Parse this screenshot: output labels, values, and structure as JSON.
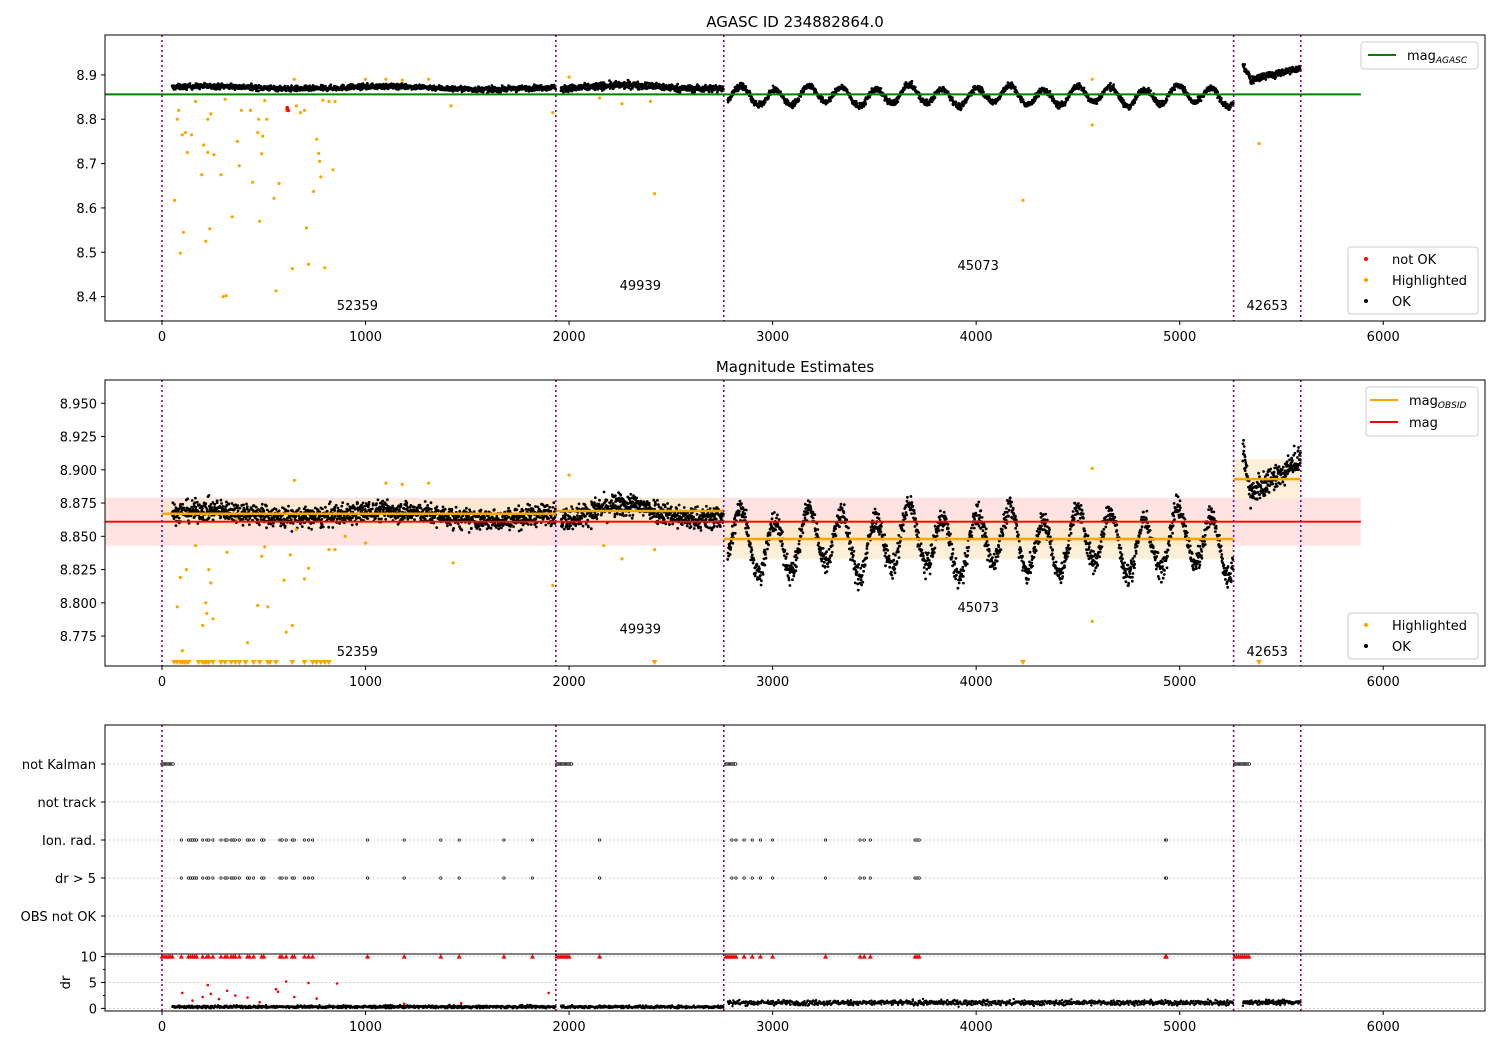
{
  "figure": {
    "top_title": "AGASC ID 234882864.0",
    "middle_title": "Magnitude Estimates"
  },
  "colors": {
    "ok": "#000000",
    "highlighted": "#ffa500",
    "not_ok": "#ff0000",
    "mag_agasc_line": "#008000",
    "mag_obsid_line": "#ffa500",
    "mag_line": "#ff0000",
    "mag_band": "#ffcccc",
    "obsid_band": "#fde9c8",
    "obsid_boundary": "#800080",
    "grid": "#b0b0b0"
  },
  "chart_data": [
    {
      "type": "scatter",
      "panel": "top",
      "title": "AGASC ID 234882864.0",
      "xlim": [
        -280,
        6500
      ],
      "ylim": [
        8.345,
        8.99
      ],
      "xticks": [
        0,
        1000,
        2000,
        3000,
        4000,
        5000,
        6000
      ],
      "xtick_labels": [
        "0",
        "1000",
        "2000",
        "3000",
        "4000",
        "5000",
        "6000"
      ],
      "yticks": [
        8.4,
        8.5,
        8.6,
        8.7,
        8.8,
        8.9
      ],
      "ytick_labels": [
        "8.4",
        "8.5",
        "8.6",
        "8.7",
        "8.8",
        "8.9"
      ],
      "legend_upper": {
        "position": "top-right",
        "entries": [
          {
            "label": "mag",
            "sub": "AGASC",
            "color": "#008000",
            "marker": "line"
          }
        ]
      },
      "legend_lower": {
        "position": "bottom-right",
        "entries": [
          {
            "label": "not OK",
            "color": "#ff0000",
            "marker": "dot"
          },
          {
            "label": "Highlighted",
            "color": "#ffa500",
            "marker": "dot"
          },
          {
            "label": "OK",
            "color": "#000000",
            "marker": "dot"
          }
        ]
      },
      "mag_agasc": 8.856,
      "mag_agasc_x": [
        -280,
        5890
      ],
      "obsid_boundaries": [
        0,
        1935,
        2760,
        5265,
        5595
      ],
      "obsid_labels": [
        {
          "text": "52359",
          "x": 960,
          "y": 8.37
        },
        {
          "text": "49939",
          "x": 2350,
          "y": 8.415
        },
        {
          "text": "45073",
          "x": 4010,
          "y": 8.46
        },
        {
          "text": "42653",
          "x": 5430,
          "y": 8.37
        }
      ],
      "ok_segments": [
        {
          "x0": 50,
          "x1": 1935,
          "center": 8.871,
          "amp": 0.003,
          "period": 900,
          "noise": 0.006,
          "n": 1400
        },
        {
          "x0": 1960,
          "x1": 2760,
          "center": 8.872,
          "amp": 0.004,
          "period": 700,
          "noise": 0.008,
          "n": 600
        },
        {
          "x0": 2780,
          "x1": 5265,
          "center": 8.853,
          "amp": 0.019,
          "period": 165,
          "noise": 0.007,
          "n": 1700
        },
        {
          "x0": 5310,
          "x1": 5595,
          "center": 8.897,
          "amp": 0.0,
          "period": 1000,
          "noise": 0.009,
          "n": 230
        }
      ],
      "not_ok_points": [
        [
          615,
          8.826
        ],
        [
          620,
          8.82
        ]
      ],
      "highlighted_points": [
        [
          62,
          8.617
        ],
        [
          75,
          8.8
        ],
        [
          82,
          8.82
        ],
        [
          90,
          8.498
        ],
        [
          100,
          8.765
        ],
        [
          105,
          8.545
        ],
        [
          115,
          8.77
        ],
        [
          125,
          8.725
        ],
        [
          145,
          8.765
        ],
        [
          165,
          8.84
        ],
        [
          195,
          8.675
        ],
        [
          205,
          8.742
        ],
        [
          215,
          8.525
        ],
        [
          225,
          8.8
        ],
        [
          225,
          8.725
        ],
        [
          235,
          8.553
        ],
        [
          240,
          8.812
        ],
        [
          255,
          8.72
        ],
        [
          290,
          8.675
        ],
        [
          300,
          8.4
        ],
        [
          310,
          8.845
        ],
        [
          315,
          8.402
        ],
        [
          345,
          8.58
        ],
        [
          370,
          8.75
        ],
        [
          380,
          8.695
        ],
        [
          390,
          8.82
        ],
        [
          435,
          8.82
        ],
        [
          445,
          8.658
        ],
        [
          470,
          8.77
        ],
        [
          475,
          8.8
        ],
        [
          480,
          8.57
        ],
        [
          490,
          8.722
        ],
        [
          495,
          8.762
        ],
        [
          505,
          8.842
        ],
        [
          515,
          8.8
        ],
        [
          550,
          8.622
        ],
        [
          560,
          8.413
        ],
        [
          575,
          8.655
        ],
        [
          610,
          8.82
        ],
        [
          640,
          8.463
        ],
        [
          660,
          8.83
        ],
        [
          680,
          8.815
        ],
        [
          700,
          8.82
        ],
        [
          710,
          8.555
        ],
        [
          720,
          8.473
        ],
        [
          745,
          8.637
        ],
        [
          760,
          8.755
        ],
        [
          770,
          8.723
        ],
        [
          775,
          8.705
        ],
        [
          780,
          8.67
        ],
        [
          790,
          8.843
        ],
        [
          800,
          8.465
        ],
        [
          820,
          8.84
        ],
        [
          840,
          8.686
        ],
        [
          850,
          8.84
        ],
        [
          1420,
          8.83
        ],
        [
          1920,
          8.815
        ],
        [
          2000,
          8.895
        ],
        [
          2150,
          8.848
        ],
        [
          2260,
          8.835
        ],
        [
          2400,
          8.84
        ],
        [
          2420,
          8.632
        ],
        [
          4230,
          8.617
        ],
        [
          4570,
          8.89
        ],
        [
          4570,
          8.787
        ],
        [
          5390,
          8.745
        ],
        [
          650,
          8.89
        ],
        [
          1000,
          8.89
        ],
        [
          1100,
          8.89
        ],
        [
          1180,
          8.888
        ],
        [
          1310,
          8.89
        ]
      ]
    },
    {
      "type": "scatter",
      "panel": "middle",
      "title": "Magnitude Estimates",
      "xlim": [
        -280,
        6500
      ],
      "ylim": [
        8.7525,
        8.9675
      ],
      "xticks": [
        0,
        1000,
        2000,
        3000,
        4000,
        5000,
        6000
      ],
      "xtick_labels": [
        "0",
        "1000",
        "2000",
        "3000",
        "4000",
        "5000",
        "6000"
      ],
      "yticks": [
        8.775,
        8.8,
        8.825,
        8.85,
        8.875,
        8.9,
        8.925,
        8.95
      ],
      "ytick_labels": [
        "8.775",
        "8.800",
        "8.825",
        "8.850",
        "8.875",
        "8.900",
        "8.925",
        "8.950"
      ],
      "legend_upper": {
        "position": "top-right",
        "entries": [
          {
            "label": "mag",
            "sub": "OBSID",
            "color": "#ffa500",
            "marker": "line"
          },
          {
            "label": "mag",
            "color": "#ff0000",
            "marker": "line"
          }
        ]
      },
      "legend_lower": {
        "position": "bottom-right",
        "entries": [
          {
            "label": "Highlighted",
            "color": "#ffa500",
            "marker": "dot"
          },
          {
            "label": "OK",
            "color": "#000000",
            "marker": "dot"
          }
        ]
      },
      "mag": 8.861,
      "mag_band": [
        8.843,
        8.879
      ],
      "mag_x": [
        -280,
        5890
      ],
      "mag_obsid": [
        {
          "x0": 0,
          "x1": 1935,
          "value": 8.867,
          "band": [
            8.857,
            8.877
          ]
        },
        {
          "x0": 1935,
          "x1": 2760,
          "value": 8.869,
          "band": [
            8.859,
            8.879
          ]
        },
        {
          "x0": 2760,
          "x1": 5265,
          "value": 8.848,
          "band": [
            8.833,
            8.863
          ]
        },
        {
          "x0": 5265,
          "x1": 5595,
          "value": 8.893,
          "band": [
            8.878,
            8.908
          ]
        }
      ],
      "obsid_boundaries": [
        0,
        1935,
        2760,
        5265,
        5595
      ],
      "obsid_labels": [
        {
          "text": "52359",
          "x": 960,
          "y": 8.76
        },
        {
          "text": "49939",
          "x": 2350,
          "y": 8.777
        },
        {
          "text": "45073",
          "x": 4010,
          "y": 8.793
        },
        {
          "text": "42653",
          "x": 5430,
          "y": 8.76
        }
      ],
      "ok_segments": [
        {
          "x0": 50,
          "x1": 1935,
          "center": 8.866,
          "amp": 0.003,
          "period": 900,
          "noise": 0.008,
          "n": 1400
        },
        {
          "x0": 1960,
          "x1": 2760,
          "center": 8.867,
          "amp": 0.005,
          "period": 700,
          "noise": 0.009,
          "n": 600
        },
        {
          "x0": 2780,
          "x1": 5265,
          "center": 8.846,
          "amp": 0.021,
          "period": 165,
          "noise": 0.009,
          "n": 1700
        },
        {
          "x0": 5310,
          "x1": 5595,
          "center": 8.89,
          "amp": 0.0,
          "period": 1000,
          "noise": 0.011,
          "n": 230
        }
      ],
      "highlighted_points": [
        [
          75,
          8.797
        ],
        [
          90,
          8.819
        ],
        [
          100,
          8.764
        ],
        [
          120,
          8.825
        ],
        [
          165,
          8.843
        ],
        [
          200,
          8.783
        ],
        [
          215,
          8.8
        ],
        [
          220,
          8.792
        ],
        [
          230,
          8.825
        ],
        [
          240,
          8.815
        ],
        [
          250,
          8.788
        ],
        [
          320,
          8.838
        ],
        [
          365,
          8.863
        ],
        [
          420,
          8.77
        ],
        [
          470,
          8.798
        ],
        [
          490,
          8.835
        ],
        [
          505,
          8.842
        ],
        [
          520,
          8.797
        ],
        [
          600,
          8.817
        ],
        [
          610,
          8.778
        ],
        [
          630,
          8.836
        ],
        [
          640,
          8.783
        ],
        [
          660,
          8.855
        ],
        [
          700,
          8.818
        ],
        [
          720,
          8.826
        ],
        [
          820,
          8.84
        ],
        [
          850,
          8.84
        ],
        [
          900,
          8.85
        ],
        [
          1000,
          8.845
        ],
        [
          1100,
          8.89
        ],
        [
          1180,
          8.889
        ],
        [
          1310,
          8.89
        ],
        [
          1430,
          8.83
        ],
        [
          1920,
          8.813
        ],
        [
          2000,
          8.896
        ],
        [
          2170,
          8.843
        ],
        [
          2260,
          8.833
        ],
        [
          2420,
          8.84
        ],
        [
          4570,
          8.901
        ],
        [
          4570,
          8.786
        ],
        [
          650,
          8.892
        ]
      ],
      "highlighted_clipped_x": [
        60,
        75,
        90,
        100,
        110,
        120,
        130,
        180,
        200,
        210,
        220,
        230,
        250,
        290,
        310,
        340,
        360,
        380,
        410,
        450,
        480,
        520,
        530,
        560,
        640,
        700,
        740,
        760,
        780,
        800,
        820,
        2420,
        4230,
        5390
      ]
    },
    {
      "type": "scatter",
      "panel": "flags",
      "xlim": [
        -280,
        6500
      ],
      "categories": [
        "not Kalman",
        "not track",
        "Ion. rad.",
        "dr > 5",
        "OBS not OK"
      ],
      "obsid_boundaries": [
        0,
        1935,
        2760,
        5265,
        5595
      ],
      "not_kalman_ranges": [
        [
          0,
          55
        ],
        [
          1940,
          2015
        ],
        [
          2770,
          2820
        ],
        [
          5270,
          5345
        ]
      ],
      "flag_x": [
        95,
        130,
        140,
        150,
        160,
        170,
        200,
        220,
        230,
        250,
        290,
        310,
        320,
        340,
        350,
        360,
        380,
        420,
        430,
        450,
        490,
        500,
        580,
        590,
        610,
        640,
        650,
        700,
        720,
        740,
        1010,
        1190,
        1370,
        1460,
        1680,
        1820,
        2150,
        2800,
        2820,
        2860,
        2900,
        2940,
        3000,
        3260,
        3430,
        3450,
        3480,
        3700,
        3710,
        3720,
        4930,
        4935
      ],
      "flag_rows": [
        "Ion. rad.",
        "dr > 5"
      ]
    },
    {
      "type": "scatter",
      "panel": "dr",
      "ylabel": "dr",
      "xlim": [
        -280,
        6500
      ],
      "ylim": [
        -0.5,
        10.5
      ],
      "xticks": [
        0,
        1000,
        2000,
        3000,
        4000,
        5000,
        6000
      ],
      "xtick_labels": [
        "0",
        "1000",
        "2000",
        "3000",
        "4000",
        "5000",
        "6000"
      ],
      "yticks": [
        0,
        5,
        10
      ],
      "ytick_labels": [
        "0",
        "5",
        "10"
      ],
      "obsid_boundaries": [
        0,
        1935,
        2760,
        5265,
        5595
      ],
      "clipped_red_x": [
        0,
        10,
        20,
        30,
        40,
        50,
        95,
        130,
        140,
        150,
        160,
        170,
        200,
        220,
        230,
        250,
        290,
        310,
        320,
        340,
        350,
        360,
        380,
        420,
        430,
        450,
        490,
        500,
        580,
        590,
        610,
        640,
        650,
        700,
        720,
        740,
        1010,
        1190,
        1370,
        1460,
        1680,
        1820,
        1940,
        1950,
        1960,
        1970,
        1980,
        1990,
        2000,
        2150,
        2770,
        2780,
        2790,
        2800,
        2810,
        2820,
        2860,
        2900,
        2940,
        3000,
        3260,
        3430,
        3450,
        3480,
        3700,
        3710,
        3720,
        4930,
        4935,
        5270,
        5280,
        5290,
        5300,
        5310,
        5320,
        5330,
        5340
      ],
      "red_points": [
        [
          100,
          3.0
        ],
        [
          150,
          1.5
        ],
        [
          200,
          2.2
        ],
        [
          225,
          4.5
        ],
        [
          240,
          2.8
        ],
        [
          280,
          1.8
        ],
        [
          320,
          3.4
        ],
        [
          360,
          2.5
        ],
        [
          420,
          2.1
        ],
        [
          480,
          1.2
        ],
        [
          560,
          3.7
        ],
        [
          570,
          3.2
        ],
        [
          610,
          5.2
        ],
        [
          650,
          2.2
        ],
        [
          720,
          4.9
        ],
        [
          760,
          1.9
        ],
        [
          860,
          4.8
        ],
        [
          1190,
          0.9
        ],
        [
          1470,
          1.0
        ],
        [
          1900,
          3.0
        ]
      ],
      "ok_segments": [
        {
          "x0": 50,
          "x1": 1935,
          "center": 0.3,
          "noise": 0.25,
          "n": 900
        },
        {
          "x0": 1960,
          "x1": 2760,
          "center": 0.3,
          "noise": 0.25,
          "n": 400
        },
        {
          "x0": 2780,
          "x1": 5265,
          "center": 1.1,
          "noise": 0.45,
          "n": 1100
        },
        {
          "x0": 5310,
          "x1": 5595,
          "center": 1.2,
          "noise": 0.45,
          "n": 140
        }
      ]
    }
  ]
}
